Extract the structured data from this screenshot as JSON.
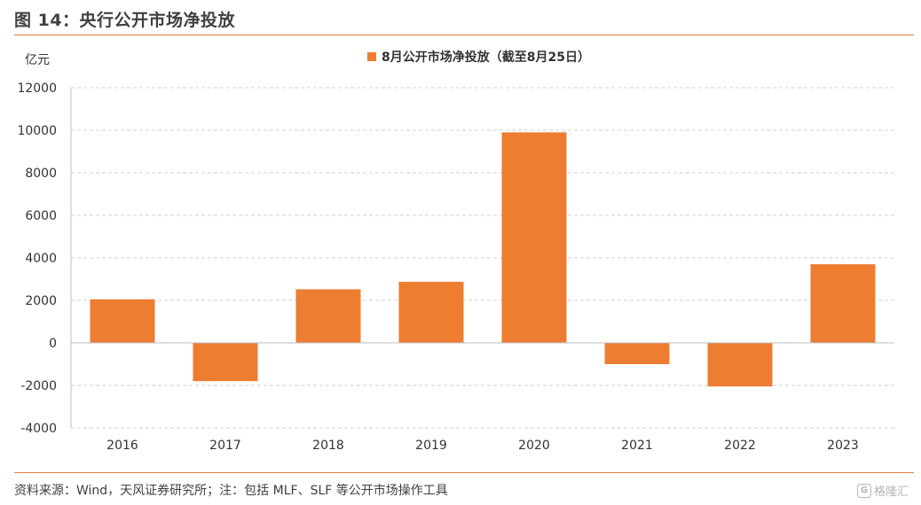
{
  "figure_title": "图 14：央行公开市场净投放",
  "source_note": "资料来源：Wind，天风证券研究所；注：包括 MLF、SLF 等公开市场操作工具",
  "watermark": {
    "logo_letter": "G",
    "text": "格隆汇"
  },
  "colors": {
    "bar": "#ed7d31",
    "rule": "#e57e33",
    "grid": "#d0d0d0"
  },
  "chart_data": {
    "type": "bar",
    "title": "",
    "xlabel": "",
    "ylabel": "亿元",
    "categories": [
      "2016",
      "2017",
      "2018",
      "2019",
      "2020",
      "2021",
      "2022",
      "2023"
    ],
    "series": [
      {
        "name": "8月公开市场净投放（截至8月25日）",
        "values": [
          2050,
          -1800,
          2520,
          2870,
          9900,
          -1000,
          -2050,
          3700
        ]
      }
    ],
    "ylim": [
      -4000,
      12000
    ],
    "yticks": [
      12000,
      10000,
      8000,
      6000,
      4000,
      2000,
      0,
      -2000,
      -4000
    ],
    "grid": true,
    "legend_position": "top-center"
  }
}
